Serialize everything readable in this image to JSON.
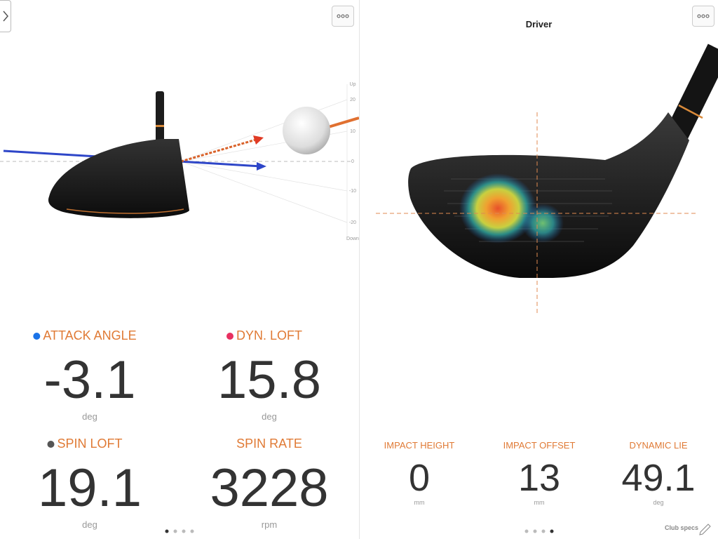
{
  "left_panel": {
    "angle_scale": [
      "Up",
      20,
      10,
      0,
      -10,
      -20,
      "Down"
    ],
    "metrics": [
      {
        "label": "ATTACK ANGLE",
        "value": -3.1,
        "unit": "deg"
      },
      {
        "label": "DYN. LOFT",
        "value": 15.8,
        "unit": "deg"
      },
      {
        "label": "SPIN LOFT",
        "value": 19.1,
        "unit": "deg"
      },
      {
        "label": "SPIN RATE",
        "value": 3228,
        "unit": "rpm"
      }
    ]
  },
  "right_panel": {
    "title": "Driver",
    "metrics": [
      {
        "label": "IMPACT HEIGHT",
        "value": 0,
        "unit": "mm"
      },
      {
        "label": "IMPACT OFFSET",
        "value": 13,
        "unit": "mm"
      },
      {
        "label": "DYNAMIC LIE",
        "value": 49.1,
        "unit": "deg"
      }
    ],
    "club_specs": "Club specs"
  }
}
